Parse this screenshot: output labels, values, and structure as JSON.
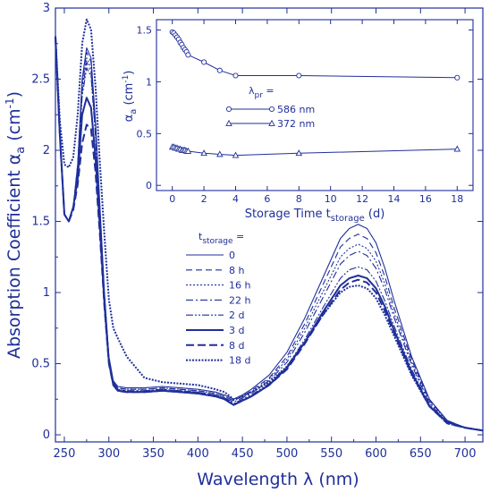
{
  "colors": {
    "ink": "#1f2f9a"
  },
  "chart_data": [
    {
      "type": "line",
      "xlabel": "Wavelength λ (nm)",
      "ylabel": "Absorption Coefficient αa (cm⁻¹)",
      "xlim": [
        240,
        720
      ],
      "ylim": [
        -0.05,
        3
      ],
      "x_ticks": [
        250,
        300,
        350,
        400,
        450,
        500,
        550,
        600,
        650,
        700
      ],
      "y_ticks": [
        0,
        0.5,
        1,
        1.5,
        2,
        2.5,
        3
      ],
      "legend_title": "t_storage =",
      "legend_placement": "center-left",
      "grid": false,
      "x": [
        240,
        245,
        250,
        255,
        260,
        265,
        270,
        275,
        280,
        285,
        290,
        295,
        300,
        305,
        310,
        320,
        340,
        360,
        380,
        400,
        420,
        430,
        440,
        450,
        460,
        480,
        500,
        520,
        540,
        560,
        570,
        580,
        590,
        600,
        610,
        620,
        640,
        660,
        680,
        700,
        720
      ],
      "series": [
        {
          "name": "0",
          "dash": "",
          "width": 1.1,
          "values": [
            2.8,
            2.1,
            1.55,
            1.5,
            1.6,
            1.9,
            2.5,
            2.72,
            2.65,
            2.2,
            1.6,
            1.0,
            0.55,
            0.38,
            0.34,
            0.33,
            0.33,
            0.34,
            0.33,
            0.32,
            0.3,
            0.28,
            0.25,
            0.28,
            0.32,
            0.42,
            0.58,
            0.82,
            1.1,
            1.38,
            1.45,
            1.48,
            1.45,
            1.35,
            1.17,
            0.95,
            0.55,
            0.25,
            0.1,
            0.05,
            0.03
          ]
        },
        {
          "name": "8 h",
          "dash": "7,4",
          "width": 1.1,
          "values": [
            2.8,
            2.1,
            1.55,
            1.5,
            1.6,
            1.9,
            2.48,
            2.69,
            2.62,
            2.18,
            1.58,
            0.99,
            0.54,
            0.37,
            0.33,
            0.32,
            0.32,
            0.33,
            0.32,
            0.31,
            0.29,
            0.27,
            0.24,
            0.27,
            0.31,
            0.4,
            0.55,
            0.78,
            1.05,
            1.32,
            1.38,
            1.41,
            1.38,
            1.28,
            1.11,
            0.9,
            0.53,
            0.24,
            0.1,
            0.05,
            0.03
          ]
        },
        {
          "name": "16 h",
          "dash": "2,2",
          "width": 1.1,
          "values": [
            2.8,
            2.1,
            1.55,
            1.5,
            1.6,
            1.88,
            2.45,
            2.65,
            2.58,
            2.15,
            1.56,
            0.98,
            0.54,
            0.37,
            0.33,
            0.32,
            0.32,
            0.33,
            0.32,
            0.31,
            0.29,
            0.27,
            0.24,
            0.27,
            0.3,
            0.39,
            0.53,
            0.75,
            1.0,
            1.25,
            1.31,
            1.34,
            1.31,
            1.22,
            1.06,
            0.86,
            0.51,
            0.23,
            0.1,
            0.05,
            0.03
          ]
        },
        {
          "name": "22 h",
          "dash": "8,3,2,3",
          "width": 1.1,
          "values": [
            2.8,
            2.1,
            1.55,
            1.5,
            1.6,
            1.86,
            2.42,
            2.62,
            2.55,
            2.12,
            1.55,
            0.97,
            0.53,
            0.36,
            0.32,
            0.31,
            0.31,
            0.32,
            0.31,
            0.3,
            0.28,
            0.26,
            0.23,
            0.26,
            0.29,
            0.38,
            0.51,
            0.72,
            0.96,
            1.2,
            1.26,
            1.29,
            1.26,
            1.17,
            1.02,
            0.83,
            0.49,
            0.22,
            0.09,
            0.05,
            0.03
          ]
        },
        {
          "name": "2 d",
          "dash": "8,2,2,2,2,2",
          "width": 1.1,
          "values": [
            2.8,
            2.1,
            1.55,
            1.5,
            1.6,
            1.84,
            2.38,
            2.58,
            2.52,
            2.1,
            1.53,
            0.96,
            0.53,
            0.36,
            0.32,
            0.31,
            0.31,
            0.32,
            0.31,
            0.3,
            0.28,
            0.26,
            0.22,
            0.25,
            0.28,
            0.36,
            0.48,
            0.67,
            0.89,
            1.1,
            1.16,
            1.18,
            1.16,
            1.08,
            0.94,
            0.77,
            0.46,
            0.21,
            0.09,
            0.05,
            0.03
          ]
        },
        {
          "name": "3 d",
          "dash": "",
          "width": 2.0,
          "values": [
            2.8,
            2.1,
            1.55,
            1.5,
            1.6,
            1.8,
            2.25,
            2.37,
            2.3,
            1.95,
            1.45,
            0.92,
            0.51,
            0.35,
            0.31,
            0.3,
            0.3,
            0.31,
            0.3,
            0.29,
            0.27,
            0.25,
            0.21,
            0.24,
            0.27,
            0.35,
            0.47,
            0.65,
            0.86,
            1.05,
            1.1,
            1.12,
            1.1,
            1.03,
            0.9,
            0.74,
            0.44,
            0.2,
            0.09,
            0.05,
            0.03
          ]
        },
        {
          "name": "8 d",
          "dash": "9,4",
          "width": 2.0,
          "values": [
            2.8,
            2.1,
            1.55,
            1.5,
            1.58,
            1.76,
            2.05,
            2.18,
            2.15,
            1.85,
            1.4,
            0.9,
            0.5,
            0.35,
            0.31,
            0.3,
            0.3,
            0.31,
            0.3,
            0.29,
            0.27,
            0.25,
            0.21,
            0.24,
            0.27,
            0.35,
            0.46,
            0.64,
            0.84,
            1.02,
            1.07,
            1.09,
            1.07,
            1.0,
            0.87,
            0.72,
            0.43,
            0.2,
            0.08,
            0.05,
            0.03
          ]
        },
        {
          "name": "18 d",
          "dash": "2,1.5",
          "width": 2.0,
          "values": [
            2.8,
            2.2,
            1.9,
            1.88,
            1.95,
            2.25,
            2.75,
            2.92,
            2.85,
            2.45,
            1.9,
            1.4,
            0.95,
            0.75,
            0.68,
            0.55,
            0.4,
            0.37,
            0.36,
            0.35,
            0.32,
            0.3,
            0.25,
            0.27,
            0.3,
            0.37,
            0.48,
            0.65,
            0.84,
            1.0,
            1.04,
            1.05,
            1.03,
            0.96,
            0.84,
            0.7,
            0.42,
            0.2,
            0.08,
            0.05,
            0.03
          ]
        }
      ]
    },
    {
      "type": "line",
      "xlabel": "Storage Time t_storage (d)",
      "ylabel": "αa (cm⁻¹)",
      "xlim": [
        -1,
        19
      ],
      "ylim": [
        -0.05,
        1.6
      ],
      "x_ticks": [
        0,
        2,
        4,
        6,
        8,
        10,
        12,
        14,
        16,
        18
      ],
      "y_ticks": [
        0,
        0.5,
        1,
        1.5
      ],
      "legend_title": "λpr =",
      "legend_placement": "center",
      "grid": false,
      "series": [
        {
          "name": "586 nm",
          "marker": "circle",
          "x": [
            0,
            0.1,
            0.2,
            0.3,
            0.4,
            0.5,
            0.6,
            0.7,
            0.8,
            0.9,
            1,
            2,
            3,
            4,
            8,
            18
          ],
          "values": [
            1.48,
            1.47,
            1.45,
            1.43,
            1.41,
            1.38,
            1.36,
            1.33,
            1.31,
            1.29,
            1.26,
            1.19,
            1.11,
            1.06,
            1.06,
            1.04
          ]
        },
        {
          "name": "372 nm",
          "marker": "triangle",
          "x": [
            0,
            0.1,
            0.2,
            0.3,
            0.4,
            0.5,
            0.6,
            0.7,
            0.8,
            0.9,
            1,
            2,
            3,
            4,
            8,
            18
          ],
          "values": [
            0.37,
            0.37,
            0.36,
            0.36,
            0.35,
            0.35,
            0.34,
            0.34,
            0.34,
            0.33,
            0.33,
            0.31,
            0.3,
            0.29,
            0.31,
            0.35
          ]
        }
      ]
    }
  ]
}
